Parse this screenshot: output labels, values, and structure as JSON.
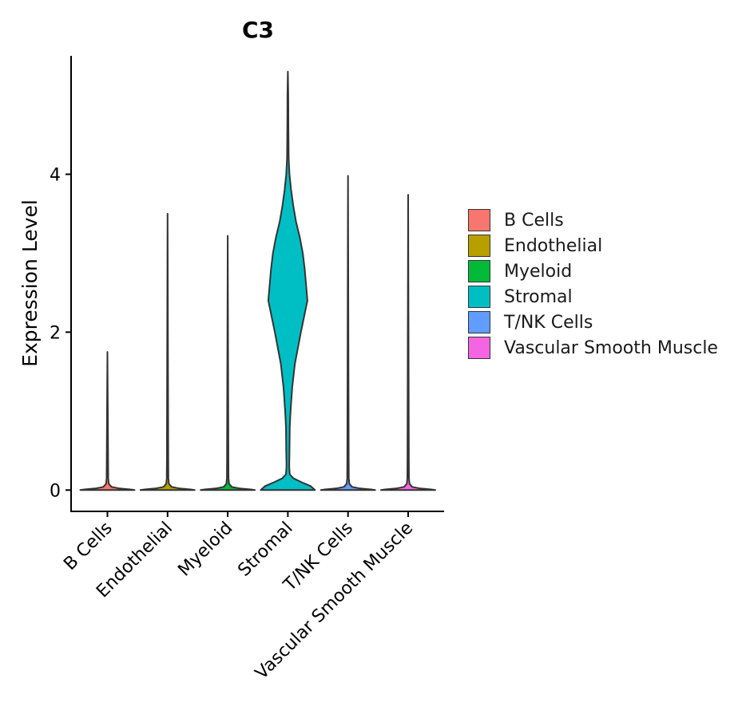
{
  "chart_data": {
    "type": "violin",
    "title": "C3",
    "xlabel": "",
    "ylabel": "Expression Level",
    "ylim": [
      -0.27,
      5.5
    ],
    "yticks": [
      0,
      2,
      4
    ],
    "categories": [
      "B Cells",
      "Endothelial",
      "Myeloid",
      "Stromal",
      "T/NK Cells",
      "Vascular Smooth Muscle"
    ],
    "colors": [
      "#F8766D",
      "#B79F00",
      "#00BA38",
      "#00BFC4",
      "#619CFF",
      "#F564E3"
    ],
    "max_values": [
      1.75,
      3.5,
      3.22,
      5.3,
      3.98,
      3.74
    ],
    "stromal_profile": {
      "y": [
        0.0,
        0.05,
        0.1,
        0.15,
        0.2,
        0.3,
        0.5,
        0.8,
        1.0,
        1.3,
        1.6,
        2.0,
        2.4,
        2.8,
        3.0,
        3.2,
        3.4,
        3.6,
        3.8,
        4.0,
        4.2,
        4.6,
        5.0,
        5.3
      ],
      "density": [
        1.0,
        0.84,
        0.5,
        0.2,
        0.07,
        0.05,
        0.06,
        0.07,
        0.1,
        0.16,
        0.26,
        0.48,
        0.72,
        0.62,
        0.55,
        0.44,
        0.3,
        0.2,
        0.12,
        0.06,
        0.03,
        0.02,
        0.015,
        0.0
      ]
    },
    "legend": {
      "position": "right",
      "entries": [
        "B Cells",
        "Endothelial",
        "Myeloid",
        "Stromal",
        "T/NK Cells",
        "Vascular Smooth Muscle"
      ]
    }
  }
}
